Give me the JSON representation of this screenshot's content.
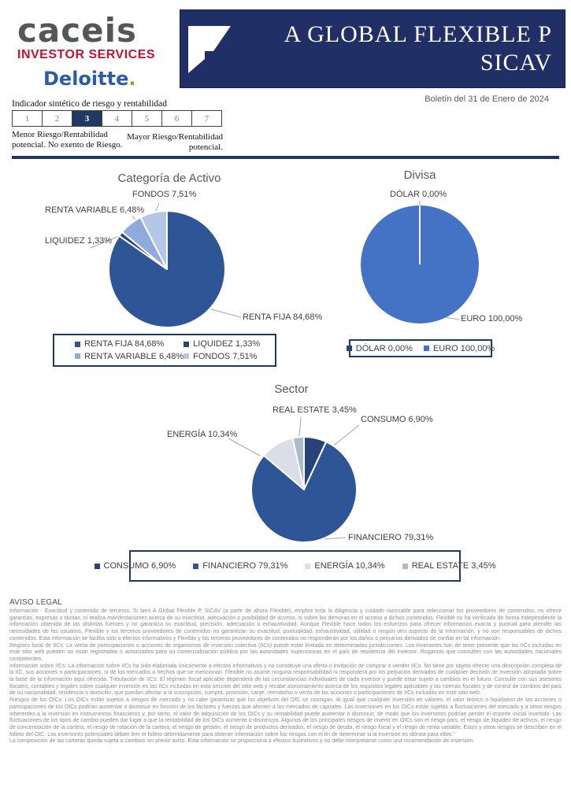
{
  "brand": {
    "caceis": "caceis",
    "caceis_sub": "INVESTOR SERVICES",
    "deloitte": "Deloitte",
    "deloitte_dot": "."
  },
  "header": {
    "title_line1": "A GLOBAL FLEXIBLE P",
    "title_line2": "SICAV",
    "bulletin": "Boletín del 31 de Enero de 2024"
  },
  "risk": {
    "label": "Indicador sintético de riesgo y rentabilidad",
    "levels": [
      "1",
      "2",
      "3",
      "4",
      "5",
      "6",
      "7"
    ],
    "selected": "3",
    "left_note": "Menor Riesgo/Rentabilidad potencial. No exento de Riesgo.",
    "right_note": "Mayor Riesgo/Rentabilidad potencial."
  },
  "colors": {
    "accent_navy": "#1F3864",
    "banner_navy": "#203067",
    "caceis_gray": "#54565A",
    "caceis_red": "#C41230",
    "deloitte_blue": "#2A5CA8",
    "deloitte_green": "#7AB41D"
  },
  "chart_data": [
    {
      "type": "pie",
      "title": "Categoría de Activo",
      "labels": [
        "RENTA FIJA",
        "LIQUIDEZ",
        "RENTA VARIABLE",
        "FONDOS"
      ],
      "values": [
        84.68,
        1.33,
        6.48,
        7.51
      ],
      "display": [
        "RENTA FIJA 84,68%",
        "LIQUIDEZ 1,33%",
        "RENTA VARIABLE 6,48%",
        "FONDOS 7,51%"
      ],
      "colors": [
        "#2E5697",
        "#264478",
        "#8FAADC",
        "#B4C7E7"
      ],
      "start_angle": "top-clockwise",
      "legend_position": "bottom"
    },
    {
      "type": "pie",
      "title": "Divisa",
      "labels": [
        "DÓLAR",
        "EURO"
      ],
      "values": [
        0.0,
        100.0
      ],
      "display": [
        "DÓLAR 0,00%",
        "EURO 100,00%"
      ],
      "colors": [
        "#264478",
        "#4472C4"
      ],
      "start_angle": "top-clockwise",
      "legend_position": "bottom"
    },
    {
      "type": "pie",
      "title": "Sector",
      "labels": [
        "CONSUMO",
        "FINANCIERO",
        "ENERGÍA",
        "REAL ESTATE"
      ],
      "values": [
        6.9,
        79.31,
        10.34,
        3.45
      ],
      "display": [
        "CONSUMO 6,90%",
        "FINANCIERO 79,31%",
        "ENERGÍA 10,34%",
        "REAL ESTATE 3,45%"
      ],
      "colors": [
        "#264478",
        "#2E5697",
        "#D9DEE8",
        "#AEB9CC"
      ],
      "start_angle": "top-clockwise",
      "legend_position": "bottom"
    }
  ],
  "legal": {
    "heading": "AVISO LEGAL",
    "paragraphs": [
      "Información - Exactitud y contenido de terceros: Si bien A Global Flexible P, SICAV (a partir de ahora Flexible), emplea toda la diligencia y cuidado razonable para seleccionar los proveedores de contenidos, no ofrece garantías, expresas o tácitas, ni realiza manifestaciones acerca de su exactitud, adecuación o posibilidad de acceso, ni sobre las demoras en el acceso a dichos contenidos. Flexible no ha verificado de forma independiente la información obtenida de las distintas fuentes y no garantiza su exactitud, precisión, adecuación o exhaustividad. Aunque Flexible hace todos los esfuerzos para ofrecer información exacta y puntual para atender las necesidades de los usuarios, Flexible y los terceros proveedores de contenidos no garantizan su exactitud, puntualidad, exhaustividad, utilidad o ningún otro aspecto de la información, y no son responsables de dichos contenidos. Esta información se facilita sólo a efectos informativos y Flexible y los terceros proveedores de contenidos no responderán por los daños o perjuicios derivados de confiar en tal información.",
      "Registro local de IICs: La venta de participaciones o acciones de organismos de inversión colectiva (IICs) puede estar limitada en determinadas jurisdicciones. Los inversores han de tener presente que las IICs incluidas en este sitio web pueden no estar registrados o autorizados para su comercialización pública por las autoridades supervisoras en el país de residencia del inversor. Rogamos que consulten con las autoridades nacionales competentes.",
      "Información sobre IICs: La información sobre IICs ha sido elaborada únicamente a efectos informativos y no constituye una oferta o invitación de comprar o vender IICs. No tiene por objeto ofrecer una descripción completa de la IIC, sus acciones o participaciones, ni de los mercados o hechos que se mencionan. Flexible no asume ninguna responsabilidad ni responderá por los perjuicios derivados de cualquier decisión de inversión adoptada sobre la base de la información aquí ofrecida. Tributación de IICs: El régimen fiscal aplicable dependerá de las circunstancias individuales de cada inversor y puede estar sujeto a cambios en el futuro. Consulte con sus asesores fiscales, contables y legales sobre cualquier inversión en las IICs incluidas en esta sección del sitio web y recabe asesoramiento acerca de los requisitos legales aplicables y las normas fiscales y de control de cambios del país de su nacionalidad, residencia o domicilio, que puedan afectar a la suscripción, compra, posesión, canje, reembolso o venta de las acciones o participaciones de IICs incluidas en este sitio web.",
      "Riesgos de los OICs: Los OICs están sujetos a riesgos de mercado y no cabe garantizar que los objetivos del OIC se consigan. Al igual que cualquier inversión en valores, el valor teórico o liquidativo de las acciones o participaciones de los OICs podrían aumentar o disminuir en función de los factores y fuerzas que afecten a los mercados de capitales. Las inversiones en los OICs están sujetas a fluctuaciones del mercado y a otros riesgos inherentes a la inversión en instrumentos financieros y, por tanto, el valor de adquisición de los OICs y su rentabilidad puede aumentar o disminuir, de modo que los inversores podrían perder el importe inicial invertido. Las fluctuaciones de los tipos de cambio pueden dar lugar a que la rentabilidad de los OICs aumente o disminuya. Algunos de los principales riesgos de invertir en OICs son el riesgo país, el riesgo de iliquidez de activos, el riesgo de concentración de la cartera, el riesgo de rotación de la cartera, el riesgo de gestión, el riesgo de productos derivados, el riesgo de deuda, el riesgo fiscal y el riesgo de renta variable. Estos y otros riesgos se describen en el folleto del OIC. Los inversores potenciales deben leer el folleto detenidamente para obtener información sobre los riesgos con el fin de determinar si la inversión es idónea para ellos.\"",
      "La composición de las carteras queda sujeta a cambios sin previo aviso. Esta información se proporciona a efectos ilustrativos y no debe interpretarse como una recomendación de inversión."
    ]
  }
}
